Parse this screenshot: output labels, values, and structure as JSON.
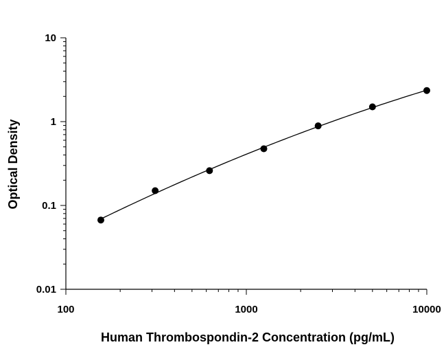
{
  "chart_data": {
    "type": "scatter",
    "title": "",
    "xlabel": "Human Thrombospondin-2 Concentration (pg/mL)",
    "ylabel": "Optical Density",
    "x_scale": "log",
    "y_scale": "log",
    "xlim": [
      100,
      10000
    ],
    "ylim": [
      0.01,
      10
    ],
    "x_ticks": [
      100,
      1000,
      10000
    ],
    "x_tick_labels": [
      "100",
      "1000",
      "10000"
    ],
    "y_ticks": [
      0.01,
      0.1,
      1,
      10
    ],
    "y_tick_labels": [
      "0.01",
      "0.1",
      "1",
      "10"
    ],
    "grid": false,
    "legend": "none",
    "series": [
      {
        "x": [
          156.25,
          312.5,
          625,
          1250,
          2500,
          5000,
          10000
        ],
        "y": [
          0.067,
          0.15,
          0.26,
          0.475,
          0.89,
          1.5,
          2.35
        ],
        "fit_curve": true
      }
    ],
    "colors": {
      "marker": "#000000",
      "line": "#000000",
      "axis": "#000000"
    }
  }
}
